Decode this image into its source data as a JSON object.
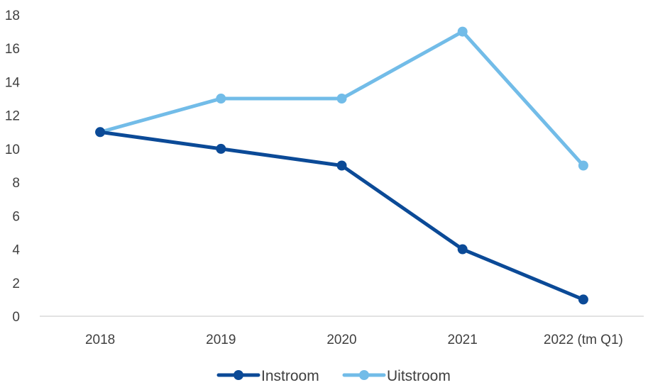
{
  "chart_data": {
    "type": "line",
    "categories": [
      "2018",
      "2019",
      "2020",
      "2021",
      "2022 (tm Q1)"
    ],
    "series": [
      {
        "name": "Instroom",
        "values": [
          11,
          10,
          9,
          4,
          1
        ],
        "color": "#0b4a97"
      },
      {
        "name": "Uitstroom",
        "values": [
          11,
          13,
          13,
          17,
          9
        ],
        "color": "#72bce8"
      }
    ],
    "ylim": [
      0,
      18
    ],
    "yticks": [
      "0",
      "2",
      "4",
      "6",
      "8",
      "10",
      "12",
      "14",
      "16",
      "18"
    ],
    "grid": false,
    "legend_position": "bottom-center",
    "axis_color": "#d9d9d9"
  }
}
